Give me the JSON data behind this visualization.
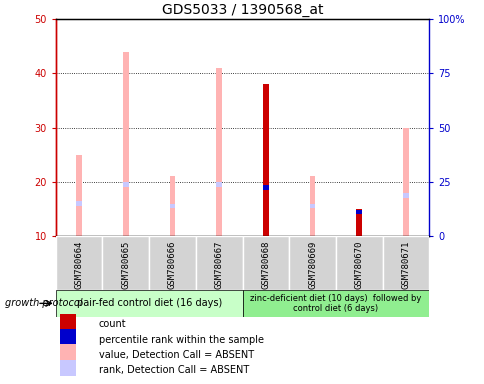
{
  "title": "GDS5033 / 1390568_at",
  "samples": [
    "GSM780664",
    "GSM780665",
    "GSM780666",
    "GSM780667",
    "GSM780668",
    "GSM780669",
    "GSM780670",
    "GSM780671"
  ],
  "pink_bar_top": [
    25,
    44,
    21,
    41,
    38,
    21,
    15,
    30
  ],
  "pink_bar_bottom": [
    10,
    10,
    10,
    10,
    10,
    10,
    10,
    10
  ],
  "blue_rank_val": [
    16,
    19.5,
    15.5,
    19.5,
    19,
    15.5,
    14.5,
    17.5
  ],
  "red_count_top": [
    null,
    null,
    null,
    null,
    38,
    null,
    15,
    null
  ],
  "blue_pct_val": [
    null,
    null,
    null,
    null,
    19,
    null,
    14.5,
    null
  ],
  "ylim_left": [
    10,
    50
  ],
  "ylim_right": [
    0,
    100
  ],
  "yticks_left": [
    10,
    20,
    30,
    40,
    50
  ],
  "yticks_right": [
    0,
    25,
    50,
    75,
    100
  ],
  "ytick_labels_right": [
    "0",
    "25",
    "50",
    "75",
    "100%"
  ],
  "group1_label": "pair-fed control diet (16 days)",
  "group2_label": "zinc-deficient diet (10 days)  followed by\ncontrol diet (6 days)",
  "growth_protocol_label": "growth protocol",
  "legend_items": [
    {
      "color": "#cc0000",
      "label": "count"
    },
    {
      "color": "#0000cc",
      "label": "percentile rank within the sample"
    },
    {
      "color": "#ffb3b3",
      "label": "value, Detection Call = ABSENT"
    },
    {
      "color": "#c8c8ff",
      "label": "rank, Detection Call = ABSENT"
    }
  ],
  "pink_color": "#ffb3b3",
  "light_blue_color": "#c8c8ff",
  "red_color": "#cc0000",
  "blue_color": "#0000cc",
  "group1_bg": "#c8ffc8",
  "group2_bg": "#90ee90",
  "sample_bg": "#d3d3d3",
  "axis_left_color": "#cc0000",
  "axis_right_color": "#0000cc",
  "bar_width": 0.12,
  "rank_bar_height": 0.8
}
